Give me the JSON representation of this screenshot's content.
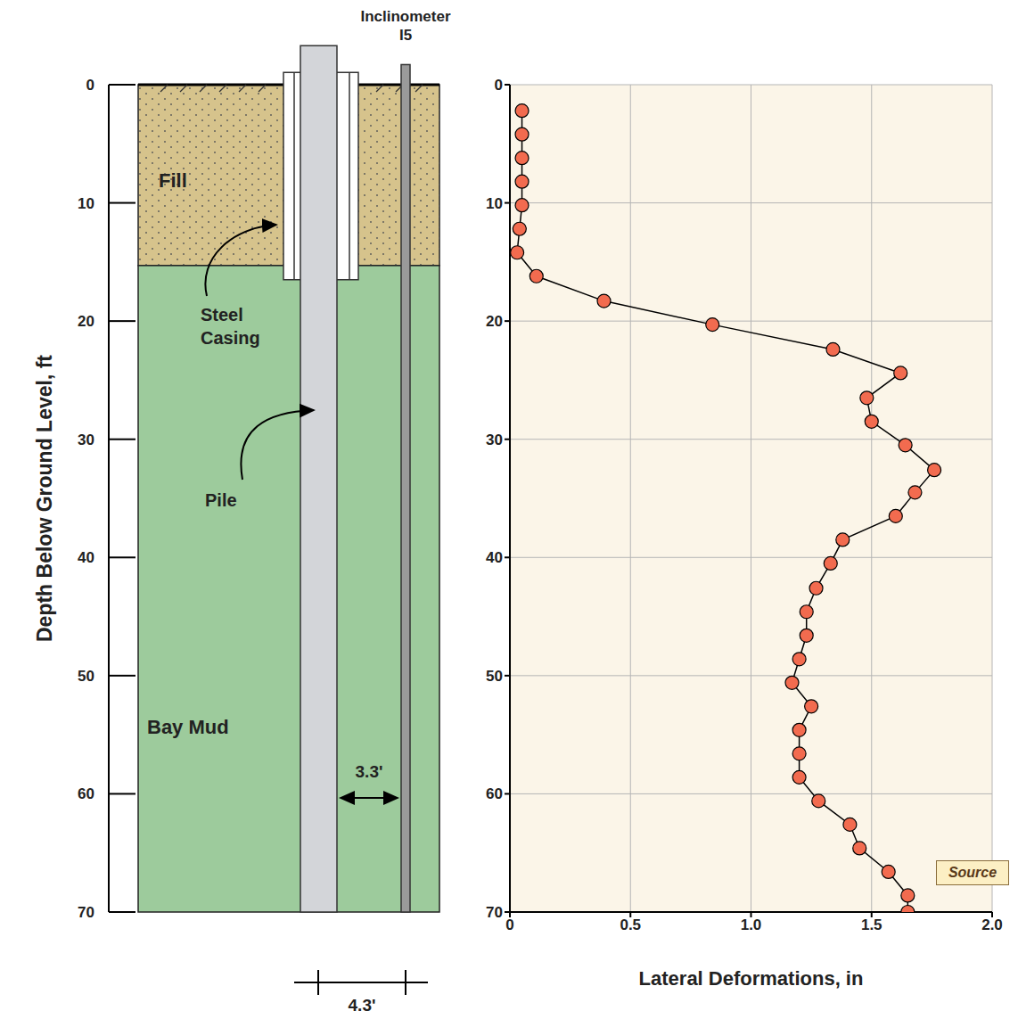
{
  "diagram": {
    "inclinometer": "Inclinometer",
    "inclinometer_id": "I5",
    "y_label": "Depth Below Ground Level, ft",
    "layers": [
      {
        "label": "Fill",
        "top": 0,
        "bottom": 15.3,
        "color": "#D6C38C"
      },
      {
        "label": "Bay Mud",
        "top": 15.3,
        "bottom": 70,
        "color": "#9DCB9C"
      }
    ],
    "casing": {
      "label": "Steel Casing",
      "bottom": 16.5
    },
    "pile": {
      "label": "Pile",
      "top": -3.3,
      "bottom": 70
    },
    "inclinometer_top": -1.7,
    "dimensions": [
      "3.3'",
      "4.3'"
    ],
    "note": "Source"
  },
  "chart_data": {
    "type": "scatter",
    "x_label": "Lateral Deformations, in",
    "x": [
      0.05,
      0.05,
      0.05,
      0.05,
      0.05,
      0.04,
      0.03,
      0.11,
      0.39,
      0.84,
      1.34,
      1.62,
      1.48,
      1.5,
      1.64,
      1.76,
      1.68,
      1.6,
      1.38,
      1.33,
      1.27,
      1.23,
      1.23,
      1.2,
      1.17,
      1.25,
      1.2,
      1.2,
      1.2,
      1.28,
      1.41,
      1.45,
      1.57,
      1.65,
      1.65
    ],
    "y": [
      2.2,
      4.2,
      6.2,
      8.2,
      10.2,
      12.2,
      14.2,
      16.2,
      18.3,
      20.3,
      22.4,
      24.4,
      26.5,
      28.5,
      30.5,
      32.6,
      34.5,
      36.5,
      38.5,
      40.5,
      42.6,
      44.6,
      46.6,
      48.6,
      50.6,
      52.6,
      54.6,
      56.6,
      58.6,
      60.6,
      62.6,
      64.6,
      66.6,
      68.6,
      70
    ],
    "color": "#F26B4F",
    "marker": "circle",
    "line_style": "solid",
    "xlim": [
      0,
      2
    ],
    "xticks": [
      0,
      0.5,
      {
        "value": 1,
        "label": "1.0"
      },
      {
        "value": 1.5,
        "label": "1.5"
      },
      {
        "value": 2,
        "label": "2.0"
      }
    ],
    "ylim": [
      0,
      70
    ],
    "yticks": [
      0,
      10,
      20,
      30,
      40,
      50,
      60,
      70
    ],
    "grid": true
  }
}
